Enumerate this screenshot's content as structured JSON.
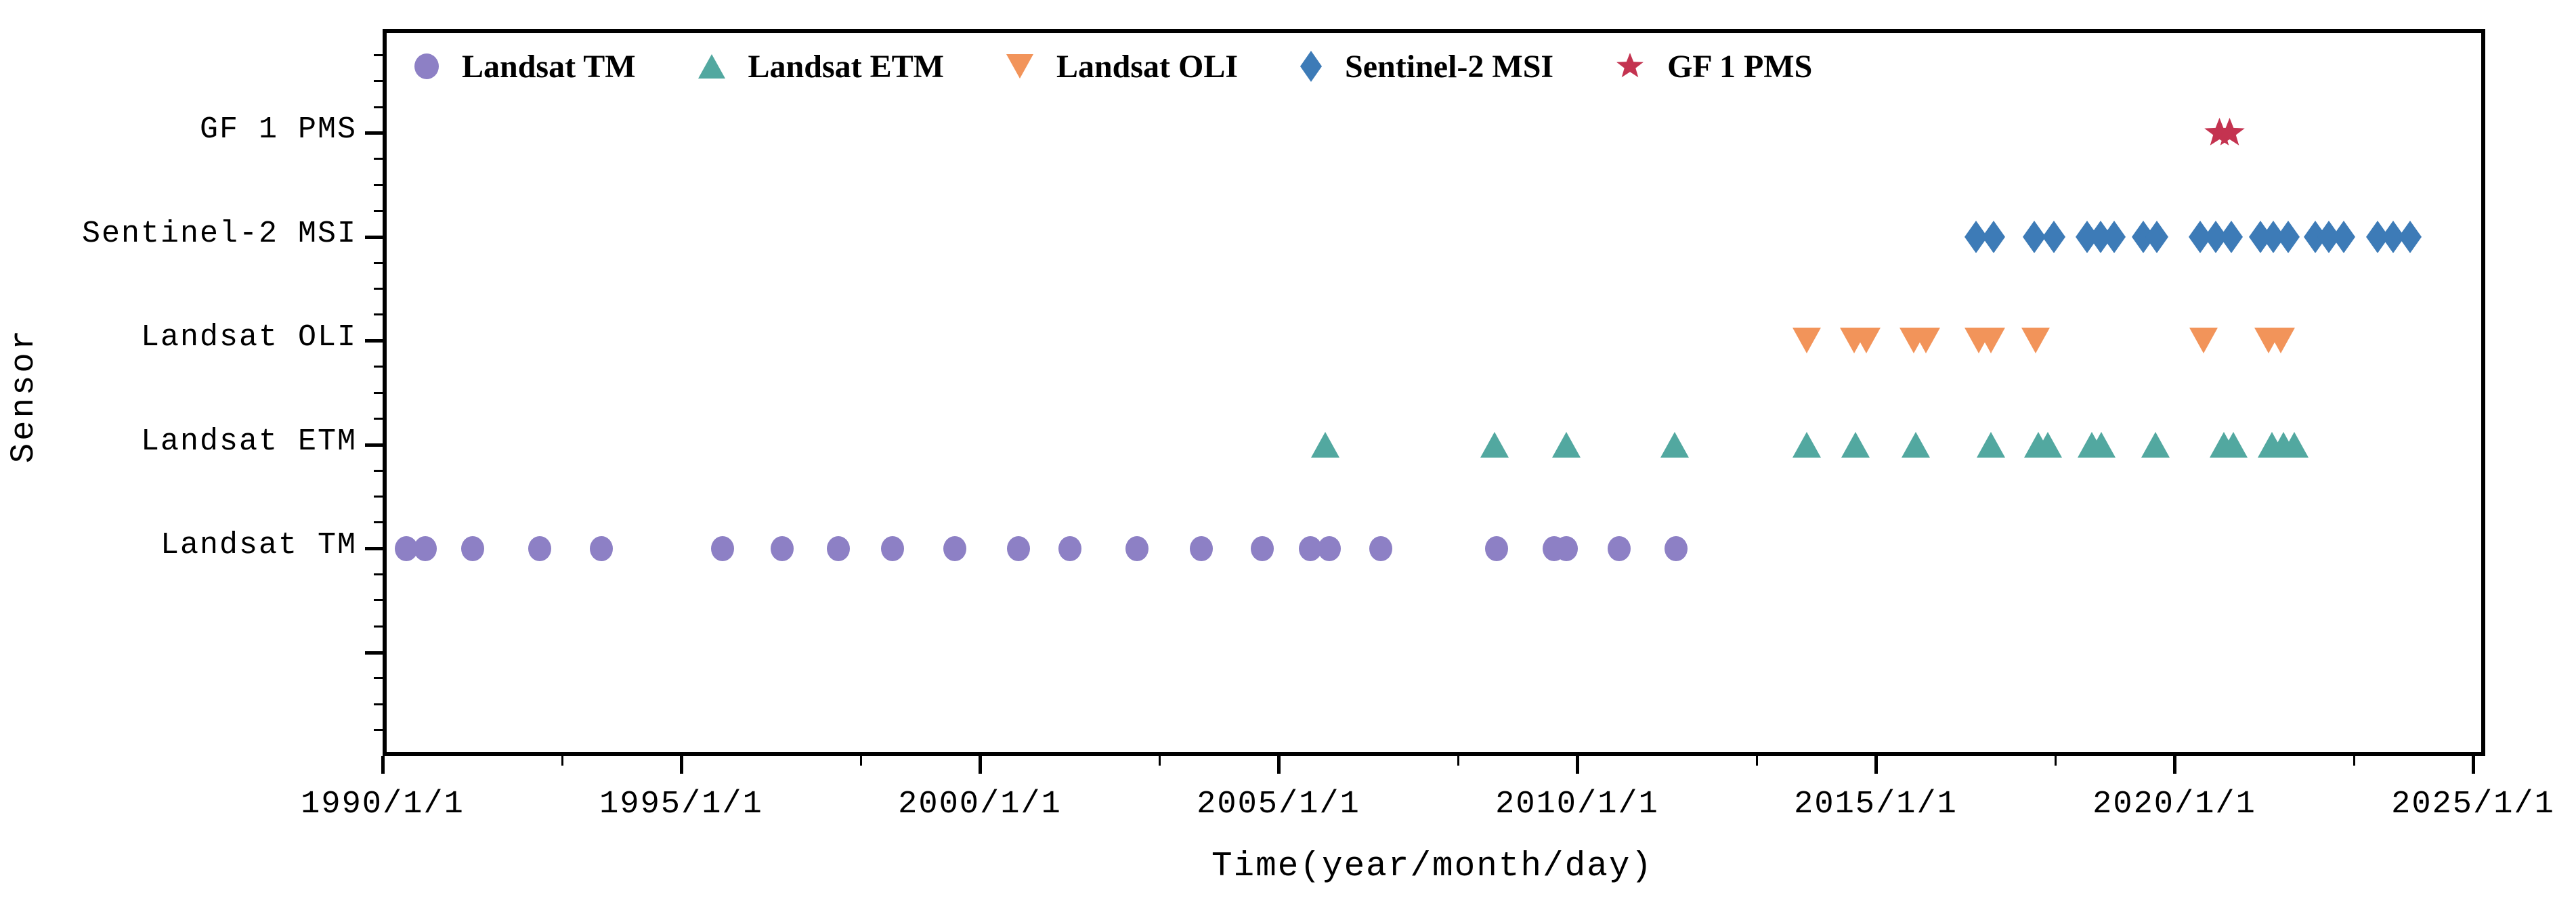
{
  "chart_data": {
    "type": "scatter",
    "title": "",
    "xlabel": "Time(year/month/day)",
    "ylabel": "Sensor",
    "grid": false,
    "legend_position": "top-inside-horizontal",
    "x_axis": {
      "major_ticks": [
        {
          "year": 1990,
          "label": "1990/1/1"
        },
        {
          "year": 1995,
          "label": "1995/1/1"
        },
        {
          "year": 2000,
          "label": "2000/1/1"
        },
        {
          "year": 2005,
          "label": "2005/1/1"
        },
        {
          "year": 2010,
          "label": "2010/1/1"
        },
        {
          "year": 2015,
          "label": "2015/1/1"
        },
        {
          "year": 2020,
          "label": "2020/1/1"
        },
        {
          "year": 2025,
          "label": "2025/1/1"
        }
      ],
      "minor_tick_years": [
        1993,
        1998,
        2003,
        2008,
        2013,
        2018,
        2023
      ],
      "xlim_years": [
        1990.0,
        2025.2
      ]
    },
    "y_axis": {
      "categories": [
        {
          "label": "GF 1 PMS",
          "v": 6
        },
        {
          "label": "Sentinel-2 MSI",
          "v": 5
        },
        {
          "label": "Landsat OLI",
          "v": 4
        },
        {
          "label": "Landsat ETM",
          "v": 3
        },
        {
          "label": "Landsat TM",
          "v": 2
        },
        {
          "label": "",
          "v": 1
        }
      ],
      "ylim": [
        0,
        7
      ],
      "minor_tick_step": 0.25
    },
    "series": [
      {
        "name": "Landsat TM",
        "marker": "circle",
        "color": "#8D80C5",
        "row_v": 2,
        "marker_w": 34,
        "marker_h": 37,
        "dates_decimal_years": [
          1990.4,
          1990.71,
          1991.51,
          1992.63,
          1993.66,
          1995.69,
          1996.69,
          1997.63,
          1998.54,
          1999.58,
          2000.65,
          2001.51,
          2002.63,
          2003.71,
          2004.73,
          2005.53,
          2005.85,
          2006.71,
          2008.65,
          2009.61,
          2009.82,
          2010.7,
          2011.66
        ]
      },
      {
        "name": "Landsat ETM",
        "marker": "triangle_up",
        "color": "#52A8A0",
        "row_v": 3,
        "marker_w": 42,
        "marker_h": 38,
        "dates_decimal_years": [
          2005.78,
          2008.62,
          2009.82,
          2011.63,
          2013.84,
          2014.66,
          2015.67,
          2016.93,
          2017.72,
          2017.88,
          2018.62,
          2018.78,
          2019.68,
          2020.83,
          2020.99,
          2021.63,
          2021.83,
          2022.01
        ]
      },
      {
        "name": "Landsat OLI",
        "marker": "triangle_down",
        "color": "#F2945A",
        "row_v": 4,
        "marker_w": 42,
        "marker_h": 38,
        "dates_decimal_years": [
          2013.84,
          2014.64,
          2014.84,
          2015.63,
          2015.84,
          2016.72,
          2016.93,
          2017.68,
          2020.49,
          2021.58,
          2021.78
        ]
      },
      {
        "name": "Sentinel-2 MSI",
        "marker": "thin_diamond",
        "color": "#3D7BB7",
        "row_v": 5,
        "marker_w": 34,
        "marker_h": 48,
        "dates_decimal_years": [
          2016.68,
          2016.97,
          2017.65,
          2017.98,
          2018.54,
          2018.76,
          2018.99,
          2019.48,
          2019.7,
          2020.43,
          2020.69,
          2020.95,
          2021.44,
          2021.66,
          2021.9,
          2022.36,
          2022.58,
          2022.84,
          2023.4,
          2023.66,
          2023.95
        ]
      },
      {
        "name": "GF 1 PMS",
        "marker": "star",
        "color": "#C43350",
        "row_v": 6,
        "marker_w": 47,
        "marker_h": 45,
        "dates_decimal_years": [
          2020.75,
          2020.92
        ]
      }
    ],
    "legend": {
      "items": [
        {
          "label": "Landsat TM",
          "marker": "circle",
          "color": "#8D80C5",
          "w": 36,
          "h": 38
        },
        {
          "label": "Landsat ETM",
          "marker": "triangle_up",
          "color": "#52A8A0",
          "w": 40,
          "h": 36
        },
        {
          "label": "Landsat OLI",
          "marker": "triangle_down",
          "color": "#F2945A",
          "w": 40,
          "h": 36
        },
        {
          "label": "Sentinel-2 MSI",
          "marker": "thin_diamond",
          "color": "#3D7BB7",
          "w": 32,
          "h": 46
        },
        {
          "label": "GF 1 PMS",
          "marker": "star",
          "color": "#C43350",
          "w": 42,
          "h": 40
        }
      ]
    }
  }
}
